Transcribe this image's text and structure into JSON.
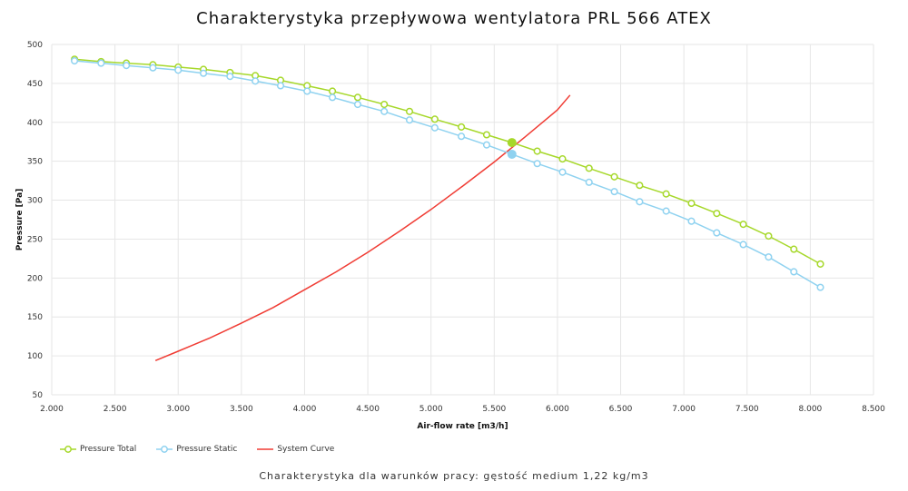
{
  "chart_data": {
    "type": "line",
    "title": "Charakterystyka przepływowa wentylatora PRL 566 ATEX",
    "xlabel": "Air-flow rate [m3/h]",
    "ylabel": "Pressure [Pa]",
    "xlim": [
      2000,
      8500
    ],
    "ylim": [
      50,
      500
    ],
    "xticks": [
      2000,
      2500,
      3000,
      3500,
      4000,
      4500,
      5000,
      5500,
      6000,
      6500,
      7000,
      7500,
      8000,
      8500
    ],
    "xtick_labels": [
      "2.000",
      "2.500",
      "3.000",
      "3.500",
      "4.000",
      "4.500",
      "5.000",
      "5.500",
      "6.000",
      "6.500",
      "7.000",
      "7.500",
      "8.000",
      "8.500"
    ],
    "yticks": [
      50,
      100,
      150,
      200,
      250,
      300,
      350,
      400,
      450,
      500
    ],
    "ytick_labels": [
      "50",
      "100",
      "150",
      "200",
      "250",
      "300",
      "350",
      "400",
      "450",
      "500"
    ],
    "grid": true,
    "legend_position": "bottom-left",
    "series": [
      {
        "name": "Pressure Total",
        "color": "#a6d82a",
        "marker": "circle-open",
        "x": [
          2180,
          2390,
          2590,
          2800,
          3000,
          3200,
          3410,
          3610,
          3810,
          4020,
          4220,
          4420,
          4630,
          4830,
          5030,
          5240,
          5440,
          5640,
          5840,
          6040,
          6250,
          6450,
          6650,
          6860,
          7060,
          7260,
          7470,
          7670,
          7870,
          8080
        ],
        "y": [
          481,
          478,
          476,
          474,
          471,
          468,
          464,
          460,
          454,
          447,
          440,
          432,
          423,
          414,
          404,
          394,
          384,
          374,
          363,
          353,
          341,
          330,
          319,
          308,
          296,
          283,
          269,
          254,
          237,
          218
        ]
      },
      {
        "name": "Pressure Static",
        "color": "#8fd2f0",
        "marker": "circle-open",
        "x": [
          2180,
          2390,
          2590,
          2800,
          3000,
          3200,
          3410,
          3610,
          3810,
          4020,
          4220,
          4420,
          4630,
          4830,
          5030,
          5240,
          5440,
          5640,
          5840,
          6040,
          6250,
          6450,
          6650,
          6860,
          7060,
          7260,
          7470,
          7670,
          7870,
          8080
        ],
        "y": [
          479,
          476,
          473,
          470,
          467,
          463,
          459,
          453,
          447,
          440,
          432,
          423,
          414,
          403,
          393,
          382,
          371,
          359,
          347,
          336,
          323,
          311,
          298,
          286,
          273,
          258,
          243,
          227,
          208,
          188
        ]
      },
      {
        "name": "System Curve",
        "color": "#f03c34",
        "marker": "none",
        "x": [
          2820,
          3000,
          3250,
          3500,
          3750,
          4000,
          4250,
          4500,
          4750,
          5000,
          5250,
          5500,
          5750,
          6000,
          6100
        ],
        "y": [
          94,
          106,
          123,
          142,
          162,
          185,
          208,
          233,
          260,
          288,
          318,
          349,
          382,
          416,
          435
        ]
      }
    ],
    "operating_points": [
      {
        "series": "Pressure Total",
        "x": 5640,
        "y": 374
      },
      {
        "series": "Pressure Static",
        "x": 5640,
        "y": 359
      }
    ],
    "caption": "Charakterystyka dla warunków pracy: gęstość medium 1,22 kg/m3"
  }
}
